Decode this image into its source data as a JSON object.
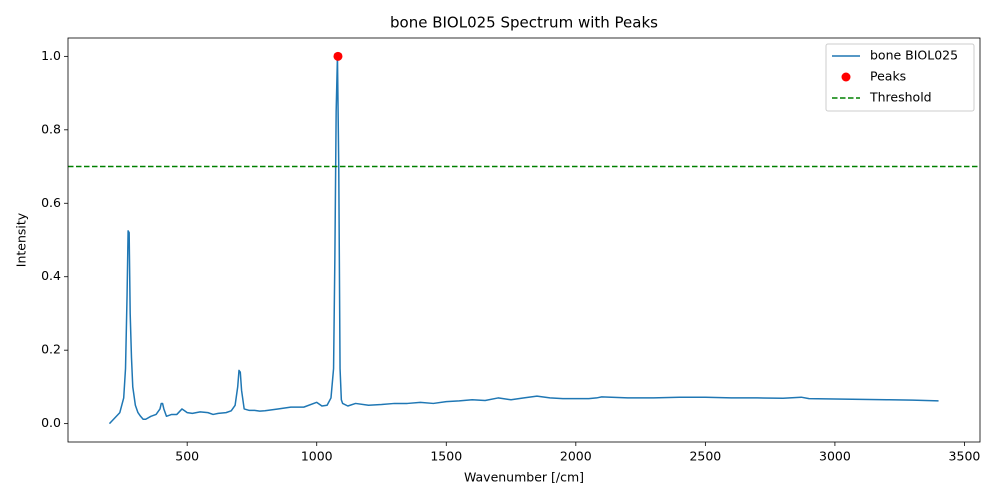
{
  "chart_data": {
    "type": "line",
    "title": "bone BIOL025 Spectrum with Peaks",
    "x_label": "Wavenumber [/cm]",
    "y_label": "Intensity",
    "xlim": [
      40,
      3560
    ],
    "ylim": [
      -0.05,
      1.05
    ],
    "xticks": [
      500,
      1000,
      1500,
      2000,
      2500,
      3000,
      3500
    ],
    "yticks": [
      {
        "value": 0,
        "label": "0.0"
      },
      {
        "value": 0.2,
        "label": "0.2"
      },
      {
        "value": 0.4,
        "label": "0.4"
      },
      {
        "value": 0.6,
        "label": "0.6"
      },
      {
        "value": 0.8,
        "label": "0.8"
      },
      {
        "value": 1,
        "label": "1.0"
      }
    ],
    "legend": "upper right",
    "series": [
      {
        "name": "bone BIOL025",
        "type": "line",
        "color": "#1f77b4",
        "x": [
          200,
          220,
          240,
          255,
          262,
          268,
          272,
          276,
          280,
          285,
          290,
          300,
          310,
          320,
          330,
          340,
          360,
          380,
          395,
          400,
          405,
          410,
          420,
          440,
          460,
          480,
          490,
          500,
          520,
          550,
          580,
          600,
          620,
          650,
          670,
          685,
          695,
          700,
          705,
          710,
          720,
          740,
          760,
          780,
          800,
          850,
          900,
          950,
          1000,
          1020,
          1040,
          1055,
          1065,
          1070,
          1075,
          1080,
          1085,
          1090,
          1095,
          1100,
          1120,
          1150,
          1200,
          1250,
          1300,
          1350,
          1400,
          1450,
          1500,
          1550,
          1600,
          1650,
          1700,
          1750,
          1800,
          1850,
          1900,
          1950,
          2000,
          2050,
          2080,
          2100,
          2200,
          2300,
          2400,
          2500,
          2600,
          2700,
          2800,
          2870,
          2900,
          3000,
          3100,
          3200,
          3300,
          3400
        ],
        "values": [
          0,
          0.015,
          0.03,
          0.07,
          0.15,
          0.35,
          0.525,
          0.52,
          0.3,
          0.18,
          0.1,
          0.05,
          0.03,
          0.02,
          0.012,
          0.012,
          0.02,
          0.025,
          0.04,
          0.055,
          0.055,
          0.04,
          0.02,
          0.025,
          0.025,
          0.04,
          0.035,
          0.03,
          0.028,
          0.032,
          0.03,
          0.025,
          0.028,
          0.03,
          0.035,
          0.05,
          0.1,
          0.145,
          0.14,
          0.09,
          0.04,
          0.036,
          0.036,
          0.034,
          0.035,
          0.04,
          0.045,
          0.045,
          0.058,
          0.048,
          0.05,
          0.07,
          0.15,
          0.45,
          0.85,
          1,
          0.7,
          0.15,
          0.065,
          0.055,
          0.048,
          0.055,
          0.05,
          0.052,
          0.055,
          0.055,
          0.058,
          0.055,
          0.06,
          0.062,
          0.065,
          0.063,
          0.07,
          0.065,
          0.07,
          0.075,
          0.07,
          0.068,
          0.068,
          0.068,
          0.07,
          0.073,
          0.07,
          0.07,
          0.072,
          0.072,
          0.07,
          0.07,
          0.069,
          0.072,
          0.068,
          0.067,
          0.066,
          0.065,
          0.064,
          0.062
        ]
      },
      {
        "name": "Peaks",
        "type": "scatter",
        "color": "#ff0000",
        "x": [
          1082
        ],
        "values": [
          1
        ]
      },
      {
        "name": "Threshold",
        "type": "hline",
        "color": "#008000",
        "values": [
          0.7
        ]
      }
    ]
  }
}
